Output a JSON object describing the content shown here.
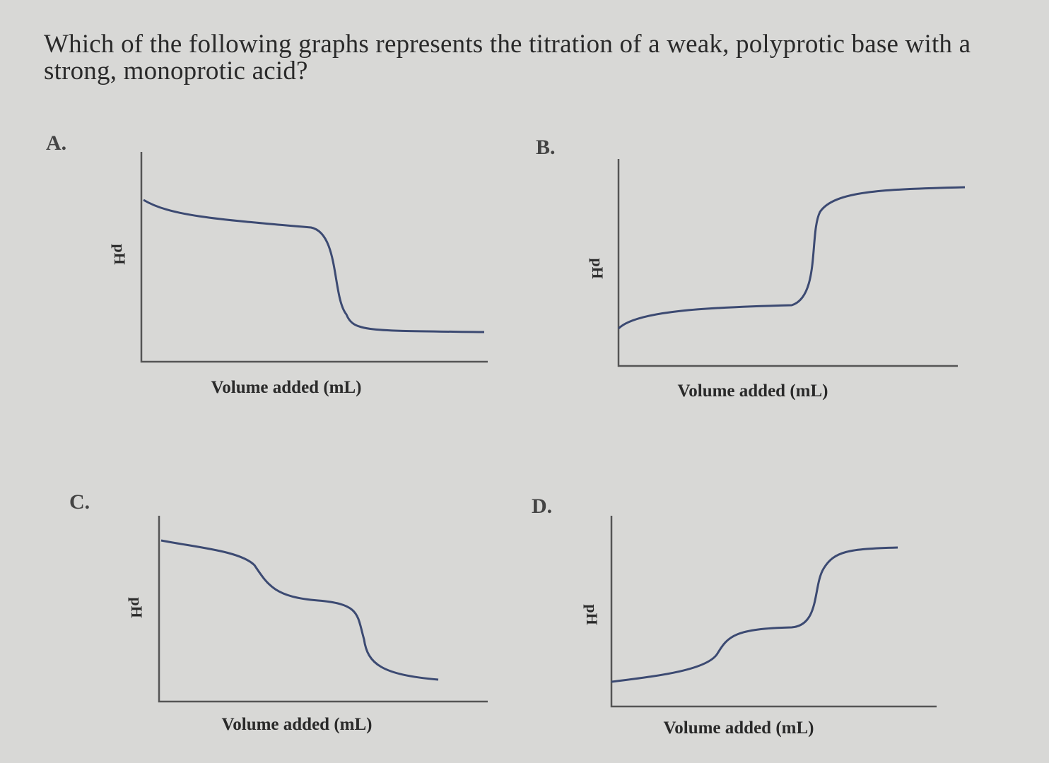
{
  "question": "Which of the following graphs represents the titration of a weak, polyprotic base with a strong, monoprotic acid?",
  "options": [
    {
      "label": "A.",
      "y_label": "pH",
      "x_label": "Volume added (mL)"
    },
    {
      "label": "B.",
      "y_label": "pH",
      "x_label": "Volume added (mL)"
    },
    {
      "label": "C.",
      "y_label": "pH",
      "x_label": "Volume added (mL)"
    },
    {
      "label": "D.",
      "y_label": "pH",
      "x_label": "Volume added (mL)"
    }
  ]
}
